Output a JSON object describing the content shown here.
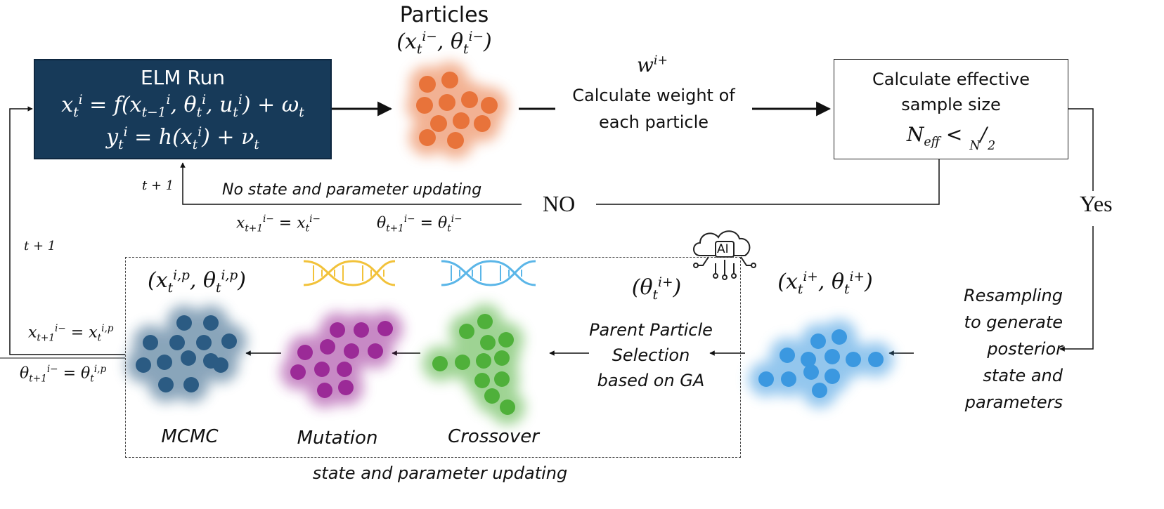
{
  "elm": {
    "title": "ELM Run",
    "state_eq": {
      "lhs": "x",
      "lhs_sub": "t",
      "lhs_sup": "i",
      "f": "f",
      "a": "x",
      "a_sub": "t−1",
      "a_sup": "i",
      "b": "θ",
      "b_sub": "t",
      "b_sup": "i",
      "c": "u",
      "c_sub": "t",
      "c_sup": "i",
      "noise": "ω",
      "noise_sub": "t"
    },
    "obs_eq": {
      "lhs": "y",
      "lhs_sub": "t",
      "lhs_sup": "i",
      "h": "h",
      "a": "x",
      "a_sub": "t",
      "a_sup": "i",
      "noise": "ν",
      "noise_sub": "t"
    }
  },
  "particles": {
    "title": "Particles",
    "tuple": {
      "x": "x",
      "x_sub": "t",
      "x_sup": "i−",
      "theta": "θ",
      "theta_sub": "t",
      "theta_sup": "i−"
    },
    "color": "#e8733a"
  },
  "weight": {
    "symbol": "w",
    "symbol_sup": "i+",
    "line1": "Calculate weight of",
    "line2": "each particle"
  },
  "ess": {
    "line1": "Calculate effective",
    "line2": "sample size",
    "ineq": {
      "n": "N",
      "n_sub": "eff",
      "lt": "<",
      "num": "N",
      "den": "2"
    }
  },
  "no_branch": {
    "label": "NO",
    "desc": "No state and parameter updating",
    "loop": "t + 1",
    "eq1": {
      "lhs": "x",
      "lhs_sub": "t+1",
      "lhs_sup": "i−",
      "rhs": "x",
      "rhs_sub": "t",
      "rhs_sup": "i−"
    },
    "eq2": {
      "lhs": "θ",
      "lhs_sub": "t+1",
      "lhs_sup": "i−",
      "rhs": "θ",
      "rhs_sub": "t",
      "rhs_sup": "i−"
    }
  },
  "yes_branch": {
    "label": "Yes",
    "resample_lines": [
      "Resampling",
      "to generate",
      "posterior",
      "state and",
      "parameters"
    ]
  },
  "posterior": {
    "tuple": {
      "x": "x",
      "x_sub": "t",
      "x_sup": "i+",
      "theta": "θ",
      "theta_sub": "t",
      "theta_sup": "i+"
    },
    "color": "#3b98e0"
  },
  "ga": {
    "theta": {
      "s": "θ",
      "sub": "t",
      "sup": "i+"
    },
    "ai_label": "AI",
    "selection_lines": [
      "Parent Particle",
      "Selection",
      "based on GA"
    ]
  },
  "stages": {
    "crossover": {
      "label": "Crossover",
      "color": "#4fb03a"
    },
    "mutation": {
      "label": "Mutation",
      "color": "#9b2a97"
    },
    "mcmc": {
      "label": "MCMC",
      "color": "#2b5b83"
    },
    "proposal": {
      "x": "x",
      "x_sub": "t",
      "x_sup": "i,p",
      "theta": "θ",
      "theta_sub": "t",
      "theta_sup": "i,p"
    }
  },
  "dna_colors": {
    "mutation": "#f2c23a",
    "crossover": "#5bb6e8"
  },
  "outer_loop": {
    "loop": "t + 1",
    "eq1": {
      "lhs": "x",
      "lhs_sub": "t+1",
      "lhs_sup": "i−",
      "rhs": "x",
      "rhs_sub": "t",
      "rhs_sup": "i,p"
    },
    "eq2": {
      "lhs": "θ",
      "lhs_sub": "t+1",
      "lhs_sup": "i−",
      "rhs": "θ",
      "rhs_sub": "t",
      "rhs_sup": "i,p"
    }
  },
  "footer": "state and parameter updating"
}
